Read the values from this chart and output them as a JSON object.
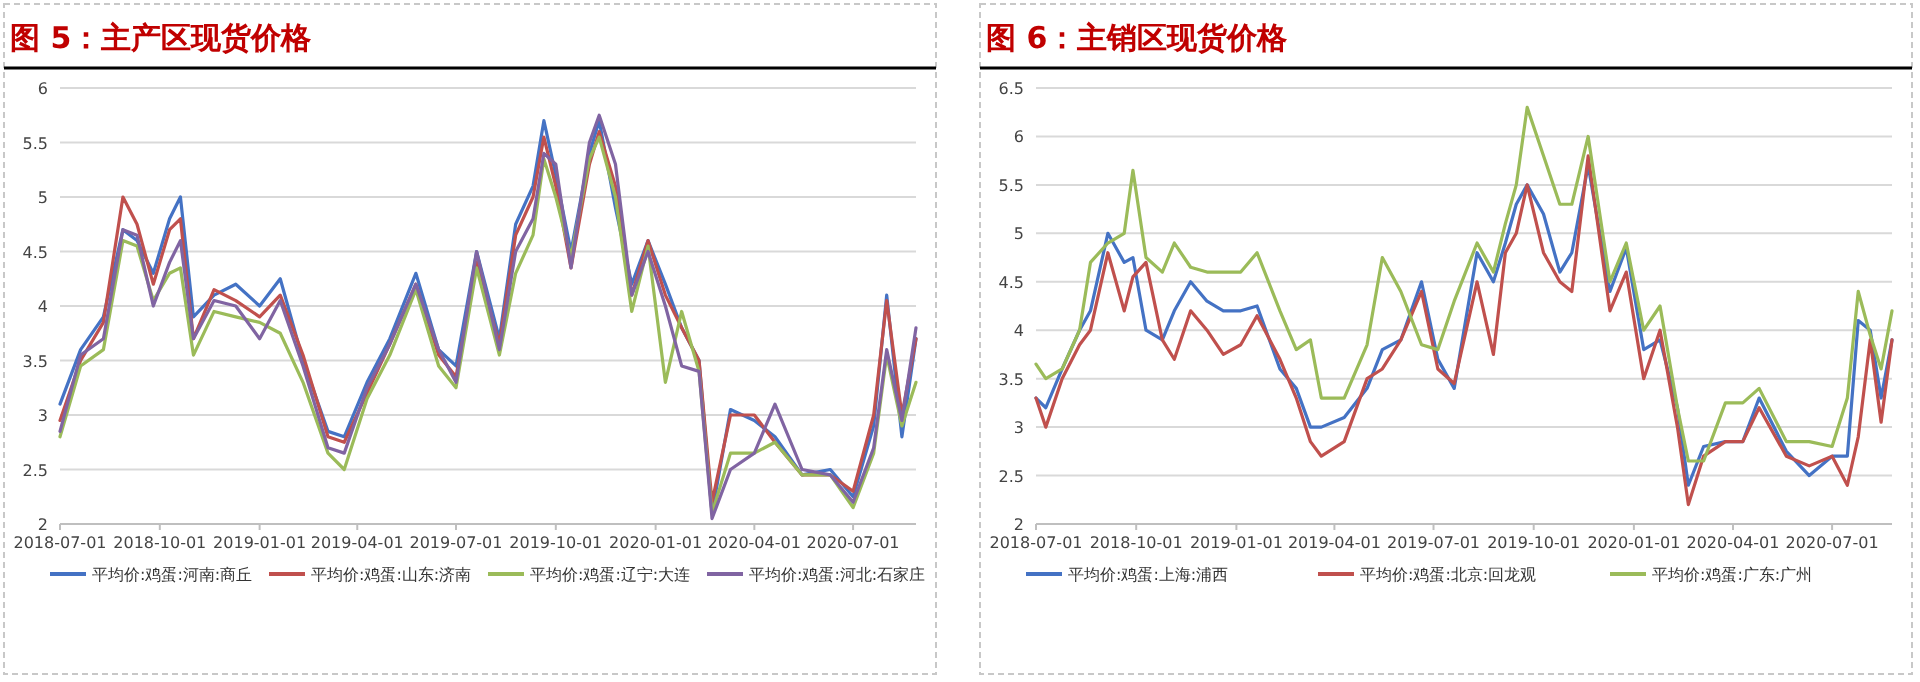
{
  "chart_data": [
    {
      "type": "line",
      "title": "图 5：主产区现货价格",
      "x": [
        "2018-07-01",
        "2018-07-20",
        "2018-08-10",
        "2018-08-28",
        "2018-09-10",
        "2018-09-25",
        "2018-10-10",
        "2018-10-20",
        "2018-11-01",
        "2018-11-20",
        "2018-12-10",
        "2019-01-01",
        "2019-01-20",
        "2019-02-10",
        "2019-03-05",
        "2019-03-20",
        "2019-04-10",
        "2019-05-01",
        "2019-05-25",
        "2019-06-15",
        "2019-07-01",
        "2019-07-20",
        "2019-08-10",
        "2019-08-25",
        "2019-09-10",
        "2019-09-20",
        "2019-10-01",
        "2019-10-15",
        "2019-11-01",
        "2019-11-10",
        "2019-11-25",
        "2019-12-10",
        "2019-12-25",
        "2020-01-10",
        "2020-01-25",
        "2020-02-10",
        "2020-02-22",
        "2020-03-10",
        "2020-04-01",
        "2020-04-20",
        "2020-05-15",
        "2020-06-10",
        "2020-07-01",
        "2020-07-20",
        "2020-08-01",
        "2020-08-15",
        "2020-08-28"
      ],
      "series": [
        {
          "name": "平均价:鸡蛋:河南:商丘",
          "color": "#4472c4",
          "values": [
            3.1,
            3.6,
            3.9,
            4.7,
            4.6,
            4.3,
            4.8,
            5.0,
            3.9,
            4.1,
            4.2,
            4.0,
            4.25,
            3.5,
            2.85,
            2.8,
            3.3,
            3.7,
            4.3,
            3.6,
            3.45,
            4.5,
            3.7,
            4.75,
            5.1,
            5.7,
            5.2,
            4.5,
            5.4,
            5.7,
            4.9,
            4.2,
            4.6,
            4.2,
            3.8,
            3.5,
            2.1,
            3.05,
            2.95,
            2.8,
            2.45,
            2.5,
            2.25,
            2.9,
            4.1,
            2.8,
            3.7
          ]
        },
        {
          "name": "平均价:鸡蛋:山东:济南",
          "color": "#c0504d",
          "values": [
            2.95,
            3.5,
            3.85,
            5.0,
            4.75,
            4.2,
            4.7,
            4.8,
            3.7,
            4.15,
            4.05,
            3.9,
            4.1,
            3.55,
            2.8,
            2.75,
            3.2,
            3.65,
            4.2,
            3.55,
            3.35,
            4.4,
            3.65,
            4.65,
            5.0,
            5.55,
            5.1,
            4.35,
            5.3,
            5.6,
            5.1,
            4.1,
            4.6,
            4.1,
            3.8,
            3.5,
            2.2,
            3.0,
            3.0,
            2.75,
            2.45,
            2.45,
            2.3,
            3.0,
            4.05,
            3.0,
            3.7
          ]
        },
        {
          "name": "平均价:鸡蛋:辽宁:大连",
          "color": "#9bbb59",
          "values": [
            2.8,
            3.45,
            3.6,
            4.6,
            4.55,
            4.05,
            4.3,
            4.35,
            3.55,
            3.95,
            3.9,
            3.85,
            3.75,
            3.3,
            2.65,
            2.5,
            3.15,
            3.55,
            4.15,
            3.45,
            3.25,
            4.35,
            3.55,
            4.3,
            4.65,
            5.35,
            5.0,
            4.45,
            5.35,
            5.55,
            5.0,
            3.95,
            4.55,
            3.3,
            3.95,
            3.4,
            2.1,
            2.65,
            2.65,
            2.75,
            2.45,
            2.45,
            2.15,
            2.65,
            3.55,
            2.9,
            3.3
          ]
        },
        {
          "name": "平均价:鸡蛋:河北:石家庄",
          "color": "#8064a2",
          "values": [
            2.85,
            3.55,
            3.7,
            4.7,
            4.65,
            4.0,
            4.4,
            4.6,
            3.7,
            4.05,
            4.0,
            3.7,
            4.05,
            3.45,
            2.7,
            2.65,
            3.25,
            3.65,
            4.2,
            3.6,
            3.3,
            4.5,
            3.6,
            4.5,
            4.8,
            5.4,
            5.3,
            4.35,
            5.5,
            5.75,
            5.3,
            4.1,
            4.5,
            4.0,
            3.45,
            3.4,
            2.05,
            2.5,
            2.65,
            3.1,
            2.5,
            2.45,
            2.2,
            2.7,
            3.6,
            2.95,
            3.8
          ]
        }
      ],
      "xlim": [
        "2018-07-01",
        "2020-08-28"
      ],
      "xticks": [
        "2018-07-01",
        "2018-10-01",
        "2019-01-01",
        "2019-04-01",
        "2019-07-01",
        "2019-10-01",
        "2020-01-01",
        "2020-04-01",
        "2020-07-01"
      ],
      "ylim": [
        2,
        6
      ],
      "yticks": [
        2,
        2.5,
        3,
        3.5,
        4,
        4.5,
        5,
        5.5,
        6
      ],
      "grid": "y",
      "legend": "bottom"
    },
    {
      "type": "line",
      "title": "图 6：主销区现货价格",
      "x": [
        "2018-07-01",
        "2018-07-10",
        "2018-07-25",
        "2018-08-10",
        "2018-08-20",
        "2018-09-05",
        "2018-09-20",
        "2018-09-28",
        "2018-10-10",
        "2018-10-25",
        "2018-11-05",
        "2018-11-20",
        "2018-12-05",
        "2018-12-20",
        "2019-01-05",
        "2019-01-20",
        "2019-02-10",
        "2019-02-25",
        "2019-03-10",
        "2019-03-20",
        "2019-04-10",
        "2019-05-01",
        "2019-05-15",
        "2019-06-01",
        "2019-06-20",
        "2019-07-05",
        "2019-07-20",
        "2019-08-10",
        "2019-08-25",
        "2019-09-05",
        "2019-09-15",
        "2019-09-25",
        "2019-10-10",
        "2019-10-25",
        "2019-11-05",
        "2019-11-20",
        "2019-12-10",
        "2019-12-25",
        "2020-01-10",
        "2020-01-25",
        "2020-02-10",
        "2020-02-20",
        "2020-03-05",
        "2020-03-25",
        "2020-04-10",
        "2020-04-25",
        "2020-05-20",
        "2020-06-10",
        "2020-07-01",
        "2020-07-15",
        "2020-07-25",
        "2020-08-05",
        "2020-08-15",
        "2020-08-25"
      ],
      "series": [
        {
          "name": "平均价:鸡蛋:上海:浦西",
          "color": "#4472c4",
          "values": [
            3.3,
            3.2,
            3.6,
            4.0,
            4.2,
            5.0,
            4.7,
            4.75,
            4.0,
            3.9,
            4.2,
            4.5,
            4.3,
            4.2,
            4.2,
            4.25,
            3.6,
            3.4,
            3.0,
            3.0,
            3.1,
            3.4,
            3.8,
            3.9,
            4.5,
            3.7,
            3.4,
            4.8,
            4.5,
            4.9,
            5.3,
            5.5,
            5.2,
            4.6,
            4.8,
            5.7,
            4.4,
            4.85,
            3.8,
            3.9,
            3.2,
            2.4,
            2.8,
            2.85,
            2.85,
            3.3,
            2.75,
            2.5,
            2.7,
            2.7,
            4.1,
            4.0,
            3.3,
            3.9
          ]
        },
        {
          "name": "平均价:鸡蛋:北京:回龙观",
          "color": "#c0504d",
          "values": [
            3.3,
            3.0,
            3.5,
            3.85,
            4.0,
            4.8,
            4.2,
            4.55,
            4.7,
            3.9,
            3.7,
            4.2,
            4.0,
            3.75,
            3.85,
            4.15,
            3.7,
            3.3,
            2.85,
            2.7,
            2.85,
            3.5,
            3.6,
            3.9,
            4.4,
            3.6,
            3.45,
            4.5,
            3.75,
            4.8,
            5.0,
            5.5,
            4.8,
            4.5,
            4.4,
            5.8,
            4.2,
            4.6,
            3.5,
            4.0,
            3.0,
            2.2,
            2.7,
            2.85,
            2.85,
            3.2,
            2.7,
            2.6,
            2.7,
            2.4,
            2.9,
            3.9,
            3.05,
            3.9
          ]
        },
        {
          "name": "平均价:鸡蛋:广东:广州",
          "color": "#9bbb59",
          "values": [
            3.65,
            3.5,
            3.6,
            4.0,
            4.7,
            4.9,
            5.0,
            5.65,
            4.75,
            4.6,
            4.9,
            4.65,
            4.6,
            4.6,
            4.6,
            4.8,
            4.2,
            3.8,
            3.9,
            3.3,
            3.3,
            3.85,
            4.75,
            4.4,
            3.85,
            3.8,
            4.3,
            4.9,
            4.6,
            5.1,
            5.5,
            6.3,
            5.8,
            5.3,
            5.3,
            6.0,
            4.5,
            4.9,
            4.0,
            4.25,
            3.2,
            2.65,
            2.65,
            3.25,
            3.25,
            3.4,
            2.85,
            2.85,
            2.8,
            3.3,
            4.4,
            3.95,
            3.6,
            4.2
          ]
        }
      ],
      "xlim": [
        "2018-07-01",
        "2020-08-25"
      ],
      "xticks": [
        "2018-07-01",
        "2018-10-01",
        "2019-01-01",
        "2019-04-01",
        "2019-07-01",
        "2019-10-01",
        "2020-01-01",
        "2020-04-01",
        "2020-07-01"
      ],
      "ylim": [
        2,
        6.5
      ],
      "yticks": [
        2,
        2.5,
        3,
        3.5,
        4,
        4.5,
        5,
        5.5,
        6,
        6.5
      ],
      "grid": "y",
      "legend": "bottom"
    }
  ]
}
